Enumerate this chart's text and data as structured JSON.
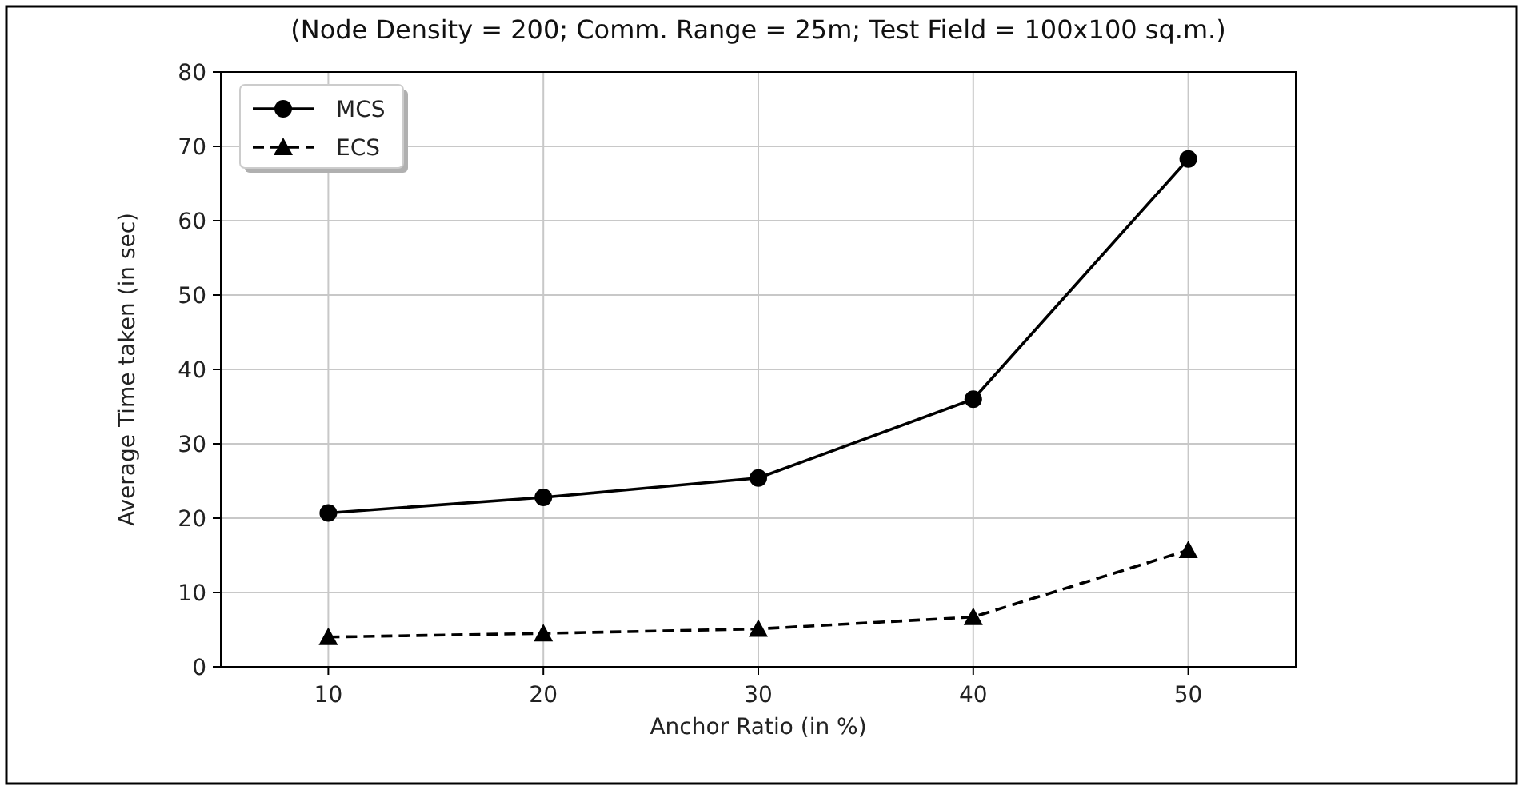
{
  "chart_data": {
    "type": "line",
    "title": "(Node Density = 200; Comm. Range = 25m; Test Field = 100x100 sq.m.)",
    "xlabel": "Anchor Ratio (in %)",
    "ylabel": "Average Time taken (in sec)",
    "x": [
      10,
      20,
      30,
      40,
      50
    ],
    "series": [
      {
        "name": "MCS",
        "color": "#000000",
        "values": [
          20.7,
          22.8,
          25.4,
          36.0,
          68.3
        ],
        "marker": "circle",
        "line_style": "solid"
      },
      {
        "name": "ECS",
        "color": "#000000",
        "values": [
          4.0,
          4.5,
          5.1,
          6.7,
          15.7
        ],
        "marker": "triangle",
        "line_style": "dashed"
      }
    ],
    "xlim": [
      5,
      55
    ],
    "xticks": [
      10,
      20,
      30,
      40,
      50
    ],
    "ylim": [
      0,
      80
    ],
    "yticks": [
      0,
      10,
      20,
      30,
      40,
      50,
      60,
      70,
      80
    ],
    "grid": true,
    "legend": "top left"
  }
}
